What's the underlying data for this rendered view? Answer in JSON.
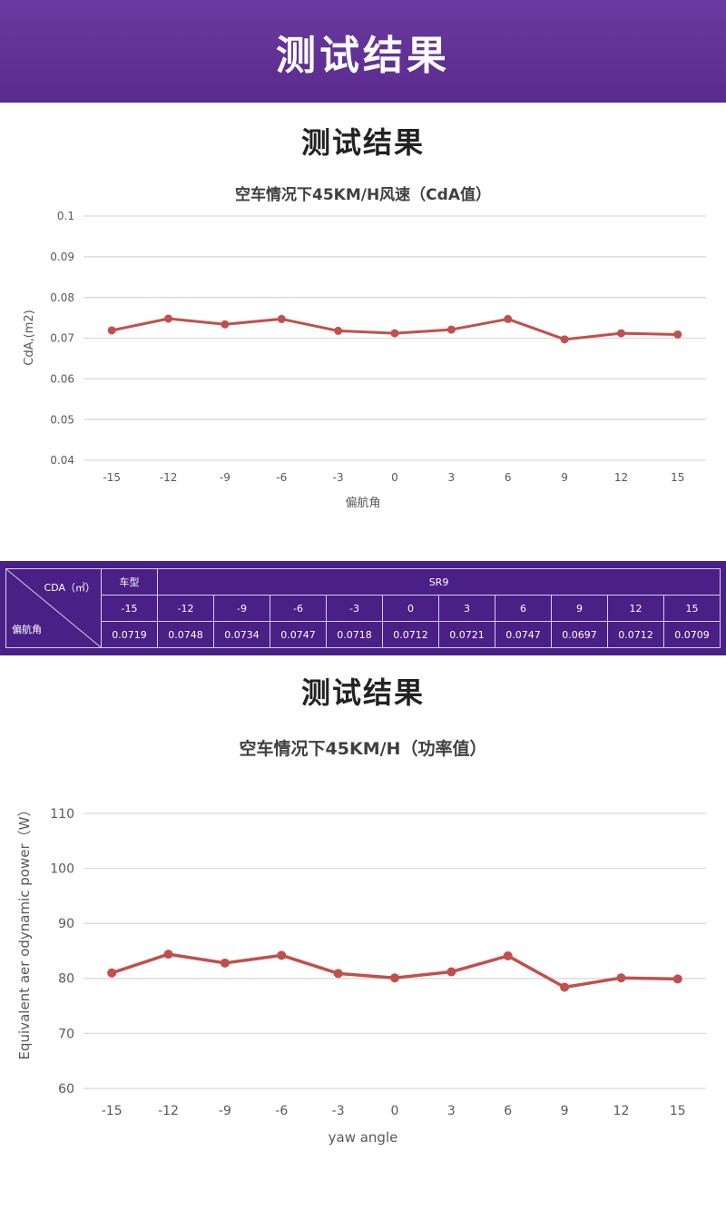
{
  "header": {
    "title": "测试结果"
  },
  "section1": {
    "title": "测试结果"
  },
  "section2": {
    "title": "测试结果"
  },
  "colors": {
    "banner": "#5f2f95",
    "line": "#c0504d",
    "grid": "#d9d9d9",
    "table_bg": "#4a1f86"
  },
  "table": {
    "corner_top": "CDA（㎡）",
    "corner_bottom": "偏航角",
    "model_label": "车型",
    "model_value": "SR9",
    "angles": [
      "-15",
      "-12",
      "-9",
      "-6",
      "-3",
      "0",
      "3",
      "6",
      "9",
      "12",
      "15"
    ],
    "values": [
      "0.0719",
      "0.0748",
      "0.0734",
      "0.0747",
      "0.0718",
      "0.0712",
      "0.0721",
      "0.0747",
      "0.0697",
      "0.0712",
      "0.0709"
    ]
  },
  "chart_data": [
    {
      "type": "line",
      "title": "空车情况下45KM/H风速（CdA值）",
      "xlabel": "偏航角",
      "ylabel": "CdA,(m2)",
      "categories": [
        "-15",
        "-12",
        "-9",
        "-6",
        "-3",
        "0",
        "3",
        "6",
        "9",
        "12",
        "15"
      ],
      "series": [
        {
          "values": [
            0.0719,
            0.0748,
            0.0734,
            0.0747,
            0.0718,
            0.0712,
            0.0721,
            0.0747,
            0.0697,
            0.0712,
            0.0709
          ]
        }
      ],
      "yticks": [
        "0.04",
        "0.05",
        "0.06",
        "0.07",
        "0.08",
        "0.09",
        "0.1"
      ],
      "ylim": [
        0.04,
        0.1
      ],
      "grid": true
    },
    {
      "type": "line",
      "title": "空车情况下45KM/H（功率值）",
      "xlabel": "yaw angle",
      "ylabel": "Equivalent aer odynamic power（W）",
      "categories": [
        "-15",
        "-12",
        "-9",
        "-6",
        "-3",
        "0",
        "3",
        "6",
        "9",
        "12",
        "15"
      ],
      "series": [
        {
          "values": [
            81.0,
            84.4,
            82.8,
            84.2,
            80.9,
            80.1,
            81.2,
            84.1,
            78.4,
            80.1,
            79.9
          ]
        }
      ],
      "yticks": [
        "60",
        "70",
        "80",
        "90",
        "100",
        "110"
      ],
      "ylim": [
        60,
        110
      ],
      "grid": true
    }
  ]
}
